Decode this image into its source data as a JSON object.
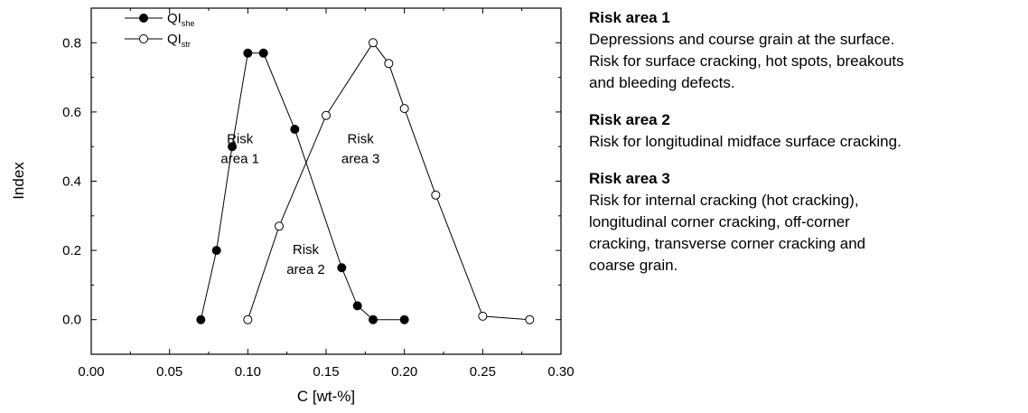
{
  "chart_data": {
    "type": "line",
    "xlabel": "C [wt-%]",
    "ylabel": "Index",
    "xlim": [
      0.0,
      0.3
    ],
    "ylim": [
      -0.1,
      0.9
    ],
    "x_ticks": [
      0.0,
      0.05,
      0.1,
      0.15,
      0.2,
      0.25,
      0.3
    ],
    "x_tick_labels": [
      "0.00",
      "0.05",
      "0.10",
      "0.15",
      "0.20",
      "0.25",
      "0.30"
    ],
    "y_ticks": [
      0.0,
      0.2,
      0.4,
      0.6,
      0.8
    ],
    "y_tick_labels": [
      "0.0",
      "0.2",
      "0.4",
      "0.6",
      "0.8"
    ],
    "grid": false,
    "legend_position": "top-left",
    "series": [
      {
        "name": "QI",
        "name_sub": "she",
        "marker": "filled-circle",
        "x": [
          0.07,
          0.08,
          0.09,
          0.1,
          0.11,
          0.13,
          0.16,
          0.17,
          0.18,
          0.2
        ],
        "y": [
          0.0,
          0.2,
          0.5,
          0.77,
          0.77,
          0.55,
          0.15,
          0.04,
          0.0,
          0.0
        ]
      },
      {
        "name": "QI",
        "name_sub": "str",
        "marker": "open-circle",
        "x": [
          0.1,
          0.12,
          0.15,
          0.18,
          0.19,
          0.2,
          0.22,
          0.25,
          0.28
        ],
        "y": [
          0.0,
          0.27,
          0.59,
          0.8,
          0.74,
          0.61,
          0.36,
          0.01,
          0.0
        ]
      }
    ],
    "annotations": [
      {
        "lines": [
          "Risk",
          "area 1"
        ],
        "x": 0.095,
        "y": 0.51
      },
      {
        "lines": [
          "Risk",
          "area 3"
        ],
        "x": 0.172,
        "y": 0.51
      },
      {
        "lines": [
          "Risk",
          "area 2"
        ],
        "x": 0.137,
        "y": 0.19
      }
    ]
  },
  "notes": [
    {
      "heading": "Risk area 1",
      "lines": [
        "Depressions and course grain at the surface.",
        "Risk for surface cracking, hot spots, breakouts",
        "and bleeding defects."
      ]
    },
    {
      "heading": "Risk area 2",
      "lines": [
        "Risk for longitudinal midface surface cracking."
      ]
    },
    {
      "heading": "Risk area 3",
      "lines": [
        "Risk for internal cracking (hot cracking),",
        "longitudinal corner cracking, off-corner",
        "cracking, transverse corner cracking and",
        "coarse grain."
      ]
    }
  ]
}
